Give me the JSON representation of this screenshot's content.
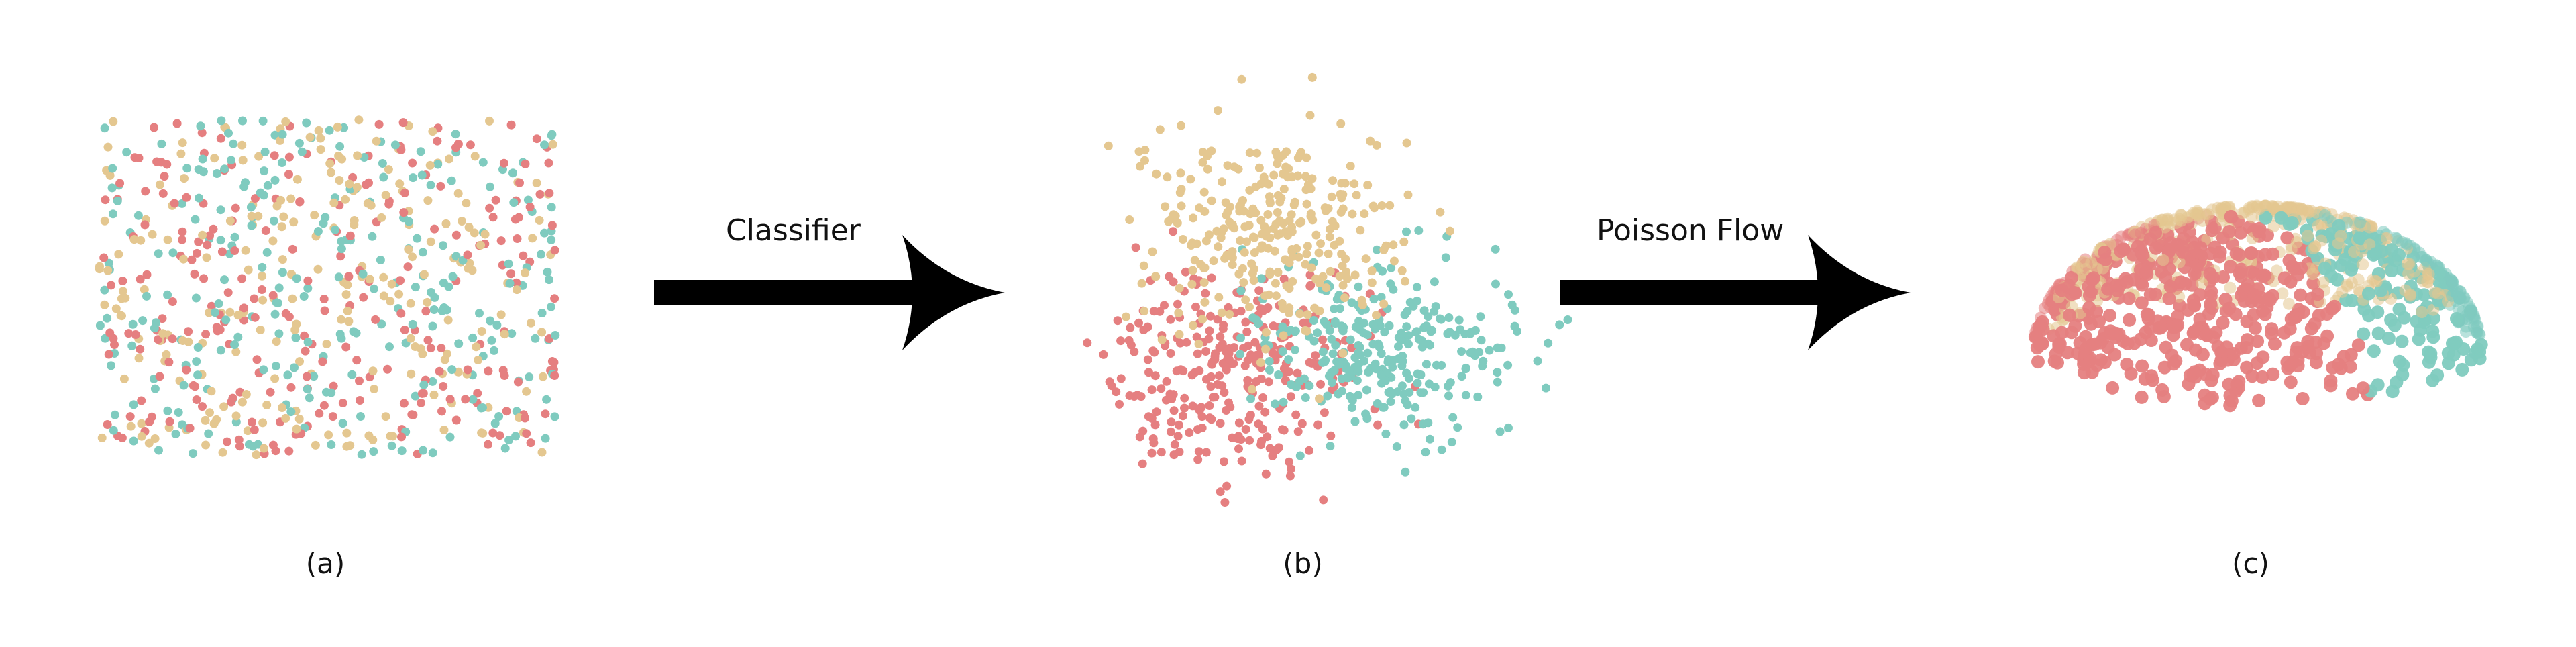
{
  "arrows": {
    "classifier": {
      "label": "Classifier"
    },
    "poisson": {
      "label": "Poisson Flow"
    }
  },
  "panels": {
    "a": {
      "label": "(a)"
    },
    "b": {
      "label": "(b)"
    },
    "c": {
      "label": "(c)"
    }
  },
  "colors": {
    "red": "#e57f80",
    "teal": "#7fcbbf",
    "sand": "#e4c790",
    "arrow": "#000000"
  }
}
